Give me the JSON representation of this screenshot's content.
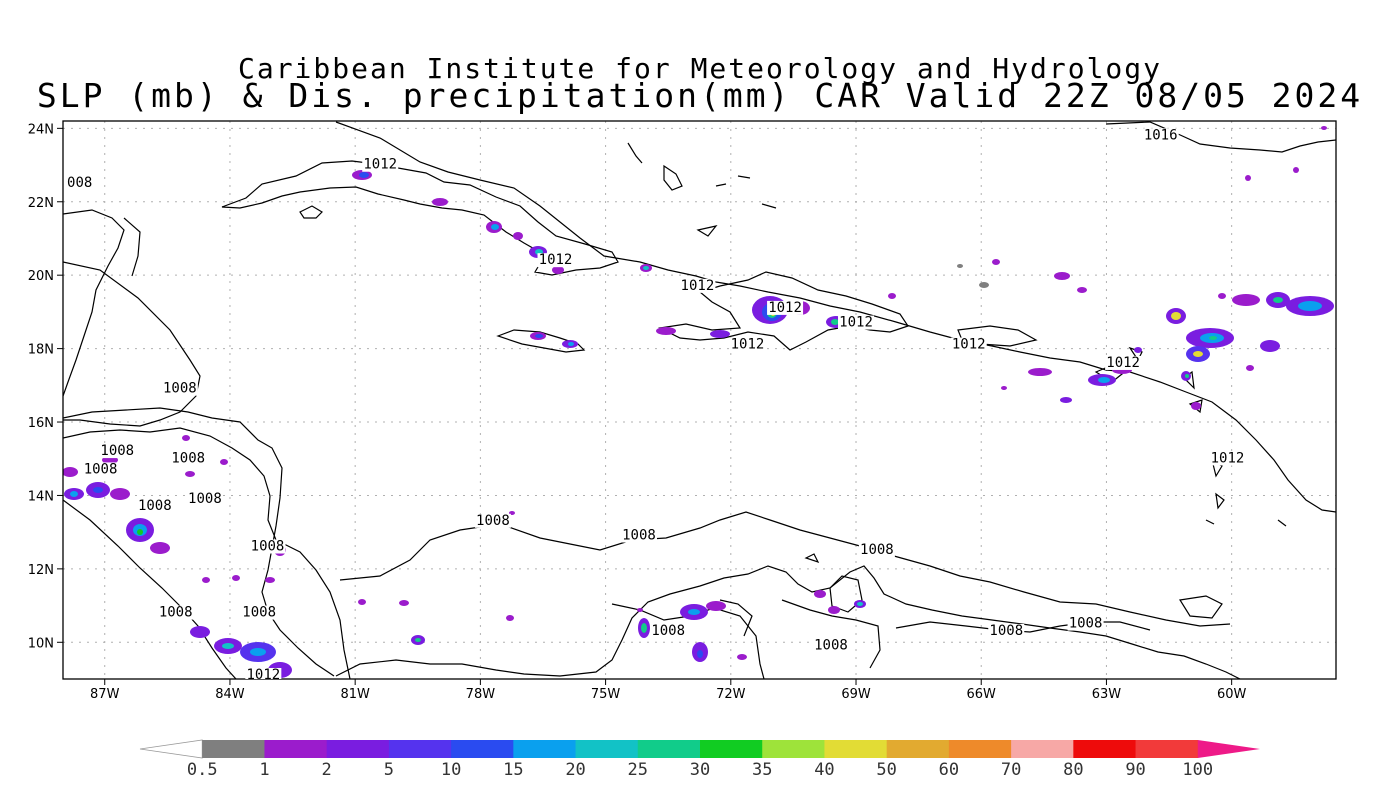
{
  "header": {
    "title_line1": "Caribbean Institute for Meteorology and Hydrology",
    "title_line2": "SLP (mb) & Dis. precipitation(mm) CAR Valid 22Z 08/05 2024"
  },
  "map": {
    "lon_range": [
      -88,
      -57.5
    ],
    "lat_range": [
      9,
      24.2
    ],
    "x_ticks": [
      {
        "lon": -87,
        "label": "87W"
      },
      {
        "lon": -84,
        "label": "84W"
      },
      {
        "lon": -81,
        "label": "81W"
      },
      {
        "lon": -78,
        "label": "78W"
      },
      {
        "lon": -75,
        "label": "75W"
      },
      {
        "lon": -72,
        "label": "72W"
      },
      {
        "lon": -69,
        "label": "69W"
      },
      {
        "lon": -66,
        "label": "66W"
      },
      {
        "lon": -63,
        "label": "63W"
      },
      {
        "lon": -60,
        "label": "60W"
      }
    ],
    "y_ticks": [
      {
        "lat": 24,
        "label": "24N"
      },
      {
        "lat": 22,
        "label": "22N"
      },
      {
        "lat": 20,
        "label": "20N"
      },
      {
        "lat": 18,
        "label": "18N"
      },
      {
        "lat": 16,
        "label": "16N"
      },
      {
        "lat": 14,
        "label": "14N"
      },
      {
        "lat": 12,
        "label": "12N"
      },
      {
        "lat": 10,
        "label": "10N"
      }
    ],
    "isobar_labels": [
      {
        "text": "008",
        "lon": -87.6,
        "lat": 22.4
      },
      {
        "text": "1012",
        "lon": -80.4,
        "lat": 22.9
      },
      {
        "text": "1016",
        "lon": -61.7,
        "lat": 23.7
      },
      {
        "text": "1012",
        "lon": -76.2,
        "lat": 20.3
      },
      {
        "text": "1012",
        "lon": -72.8,
        "lat": 19.6
      },
      {
        "text": "1012",
        "lon": -70.7,
        "lat": 19.0
      },
      {
        "text": "1012",
        "lon": -69.0,
        "lat": 18.6
      },
      {
        "text": "1012",
        "lon": -71.6,
        "lat": 18.0
      },
      {
        "text": "1012",
        "lon": -66.3,
        "lat": 18.0
      },
      {
        "text": "1012",
        "lon": -62.6,
        "lat": 17.5
      },
      {
        "text": "1012",
        "lon": -60.1,
        "lat": 14.9
      },
      {
        "text": "1008",
        "lon": -85.2,
        "lat": 16.8
      },
      {
        "text": "1008",
        "lon": -86.7,
        "lat": 15.1
      },
      {
        "text": "1008",
        "lon": -85.0,
        "lat": 14.9
      },
      {
        "text": "1008",
        "lon": -87.1,
        "lat": 14.6
      },
      {
        "text": "1008",
        "lon": -85.8,
        "lat": 13.6
      },
      {
        "text": "1008",
        "lon": -84.6,
        "lat": 13.8
      },
      {
        "text": "1008",
        "lon": -83.1,
        "lat": 12.5
      },
      {
        "text": "1008",
        "lon": -77.7,
        "lat": 13.2
      },
      {
        "text": "1008",
        "lon": -74.2,
        "lat": 12.8
      },
      {
        "text": "1008",
        "lon": -68.5,
        "lat": 12.4
      },
      {
        "text": "1008",
        "lon": -85.3,
        "lat": 10.7
      },
      {
        "text": "1008",
        "lon": -83.3,
        "lat": 10.7
      },
      {
        "text": "1008",
        "lon": -73.5,
        "lat": 10.2
      },
      {
        "text": "1008",
        "lon": -65.4,
        "lat": 10.2
      },
      {
        "text": "1008",
        "lon": -63.5,
        "lat": 10.4
      },
      {
        "text": "1008",
        "lon": -69.6,
        "lat": 9.8
      },
      {
        "text": "1012",
        "lon": -83.2,
        "lat": 9.0
      }
    ]
  },
  "colorbar": {
    "labels": [
      "0.5",
      "1",
      "2",
      "5",
      "10",
      "15",
      "20",
      "25",
      "30",
      "35",
      "40",
      "50",
      "60",
      "70",
      "80",
      "90",
      "100"
    ],
    "colors": [
      "#ffffff",
      "#7f7f7f",
      "#9b1ccc",
      "#7a1de0",
      "#5533ee",
      "#2a4bf0",
      "#0aa0ee",
      "#12c2c6",
      "#11cc8a",
      "#11cc22",
      "#9ee33a",
      "#e2dc35",
      "#e2aa30",
      "#ee8a2a",
      "#f7a8a6",
      "#ee0b0b",
      "#f23a3a",
      "#ee1a88"
    ]
  }
}
